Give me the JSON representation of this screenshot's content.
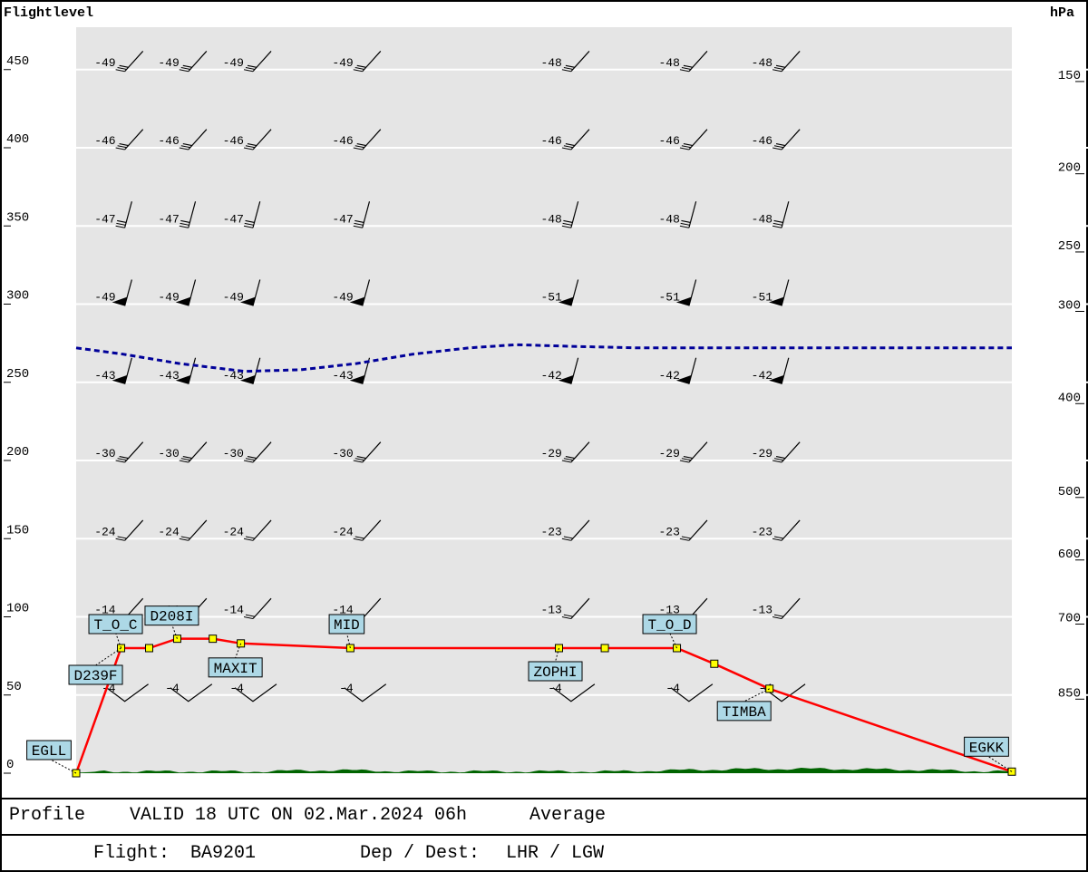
{
  "header": {
    "left_axis_title": "Flightlevel",
    "right_axis_title": "hPa"
  },
  "footer": {
    "profile_label": "Profile",
    "valid_text": "VALID 18 UTC ON 02.Mar.2024 06h",
    "average_label": "Average",
    "flight_label": "Flight:",
    "flight_value": "BA9201",
    "depdest_label": "Dep / Dest:",
    "depdest_value": "LHR / LGW"
  },
  "chart_data": {
    "type": "line",
    "flightlevel_ticks": [
      0,
      50,
      100,
      150,
      200,
      250,
      300,
      350,
      400,
      450
    ],
    "hpa_ticks": [
      {
        "label": "150",
        "fl": 447
      },
      {
        "label": "200",
        "fl": 388
      },
      {
        "label": "250",
        "fl": 338
      },
      {
        "label": "300",
        "fl": 300
      },
      {
        "label": "400",
        "fl": 241
      },
      {
        "label": "500",
        "fl": 181
      },
      {
        "label": "600",
        "fl": 141
      },
      {
        "label": "700",
        "fl": 100
      },
      {
        "label": "850",
        "fl": 52
      }
    ],
    "ylim": [
      0,
      475
    ],
    "xlim": [
      0,
      100
    ],
    "grid": true,
    "temperature_levels": [
      {
        "fl": 450,
        "values": [
          "-49",
          "-49",
          "-49",
          "-49",
          "-48",
          "-48",
          "-48"
        ]
      },
      {
        "fl": 400,
        "values": [
          "-46",
          "-46",
          "-46",
          "-46",
          "-46",
          "-46",
          "-46"
        ]
      },
      {
        "fl": 350,
        "values": [
          "-47",
          "-47",
          "-47",
          "-47",
          "-48",
          "-48",
          "-48"
        ]
      },
      {
        "fl": 300,
        "values": [
          "-49",
          "-49",
          "-49",
          "-49",
          "-51",
          "-51",
          "-51"
        ]
      },
      {
        "fl": 250,
        "values": [
          "-43",
          "-43",
          "-43",
          "-43",
          "-42",
          "-42",
          "-42"
        ]
      },
      {
        "fl": 200,
        "values": [
          "-30",
          "-30",
          "-30",
          "-30",
          "-29",
          "-29",
          "-29"
        ]
      },
      {
        "fl": 150,
        "values": [
          "-24",
          "-24",
          "-24",
          "-24",
          "-23",
          "-23",
          "-23"
        ]
      },
      {
        "fl": 100,
        "values": [
          "-14",
          "-14",
          "-14",
          "-14",
          "-13",
          "-13",
          "-13"
        ]
      },
      {
        "fl": 50,
        "values": [
          "-4",
          "-4",
          "-4",
          "-4",
          "-4",
          "-4",
          "-4"
        ]
      }
    ],
    "station_x": [
      5,
      11.8,
      18.7,
      30.4,
      52.7,
      65.3,
      75.2
    ],
    "route": [
      {
        "name": "EGLL",
        "x": 0,
        "fl": 0
      },
      {
        "name": "D239F",
        "x": 4.8,
        "fl": 80
      },
      {
        "name": "T_O_C",
        "x": 4.8,
        "fl": 80
      },
      {
        "name": "",
        "x": 7.8,
        "fl": 80
      },
      {
        "name": "D208I",
        "x": 10.8,
        "fl": 86
      },
      {
        "name": "",
        "x": 14.6,
        "fl": 86
      },
      {
        "name": "MAXIT",
        "x": 17.6,
        "fl": 83
      },
      {
        "name": "MID",
        "x": 29.3,
        "fl": 80
      },
      {
        "name": "ZOPHI",
        "x": 51.6,
        "fl": 80
      },
      {
        "name": "",
        "x": 56.5,
        "fl": 80
      },
      {
        "name": "T_O_D",
        "x": 64.2,
        "fl": 80
      },
      {
        "name": "",
        "x": 68.2,
        "fl": 70
      },
      {
        "name": "TIMBA",
        "x": 74.1,
        "fl": 54
      },
      {
        "name": "EGKK",
        "x": 100,
        "fl": 1
      }
    ],
    "tropopause": [
      {
        "x": 0,
        "fl": 272
      },
      {
        "x": 5,
        "fl": 268
      },
      {
        "x": 11,
        "fl": 262
      },
      {
        "x": 18,
        "fl": 257
      },
      {
        "x": 24,
        "fl": 258
      },
      {
        "x": 30,
        "fl": 262
      },
      {
        "x": 36,
        "fl": 268
      },
      {
        "x": 42,
        "fl": 272
      },
      {
        "x": 47,
        "fl": 274
      },
      {
        "x": 53,
        "fl": 273
      },
      {
        "x": 60,
        "fl": 272
      },
      {
        "x": 70,
        "fl": 272
      },
      {
        "x": 80,
        "fl": 272
      },
      {
        "x": 90,
        "fl": 272
      },
      {
        "x": 100,
        "fl": 272
      }
    ],
    "colors": {
      "route": "#ff0000",
      "tropopause": "#000099",
      "terrain": "#006400",
      "panel": "#e5e5e5",
      "label_bg": "#add8e6",
      "waypoint": "#ffff00"
    }
  }
}
